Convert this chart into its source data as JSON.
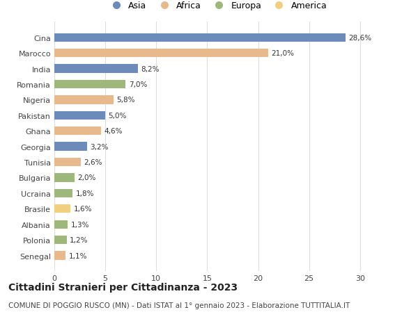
{
  "countries": [
    "Cina",
    "Marocco",
    "India",
    "Romania",
    "Nigeria",
    "Pakistan",
    "Ghana",
    "Georgia",
    "Tunisia",
    "Bulgaria",
    "Ucraina",
    "Brasile",
    "Albania",
    "Polonia",
    "Senegal"
  ],
  "values": [
    28.6,
    21.0,
    8.2,
    7.0,
    5.8,
    5.0,
    4.6,
    3.2,
    2.6,
    2.0,
    1.8,
    1.6,
    1.3,
    1.2,
    1.1
  ],
  "labels": [
    "28,6%",
    "21,0%",
    "8,2%",
    "7,0%",
    "5,8%",
    "5,0%",
    "4,6%",
    "3,2%",
    "2,6%",
    "2,0%",
    "1,8%",
    "1,6%",
    "1,3%",
    "1,2%",
    "1,1%"
  ],
  "colors": [
    "#6b8cba",
    "#e8b98a",
    "#6b8cba",
    "#9db87a",
    "#e8b98a",
    "#6b8cba",
    "#e8b98a",
    "#6b8cba",
    "#e8b98a",
    "#9db87a",
    "#9db87a",
    "#f0d080",
    "#9db87a",
    "#9db87a",
    "#e8b98a"
  ],
  "continent_colors": {
    "Asia": "#6b8cba",
    "Africa": "#e8b98a",
    "Europa": "#9db87a",
    "America": "#f0d080"
  },
  "legend_order": [
    "Asia",
    "Africa",
    "Europa",
    "America"
  ],
  "xlim": [
    0,
    32
  ],
  "xticks": [
    0,
    5,
    10,
    15,
    20,
    25,
    30
  ],
  "title": "Cittadini Stranieri per Cittadinanza - 2023",
  "subtitle": "COMUNE DI POGGIO RUSCO (MN) - Dati ISTAT al 1° gennaio 2023 - Elaborazione TUTTITALIA.IT",
  "background_color": "#ffffff",
  "grid_color": "#dddddd",
  "bar_height": 0.55,
  "label_fontsize": 7.5,
  "ytick_fontsize": 8,
  "xtick_fontsize": 8,
  "title_fontsize": 10,
  "subtitle_fontsize": 7.5,
  "legend_fontsize": 9
}
